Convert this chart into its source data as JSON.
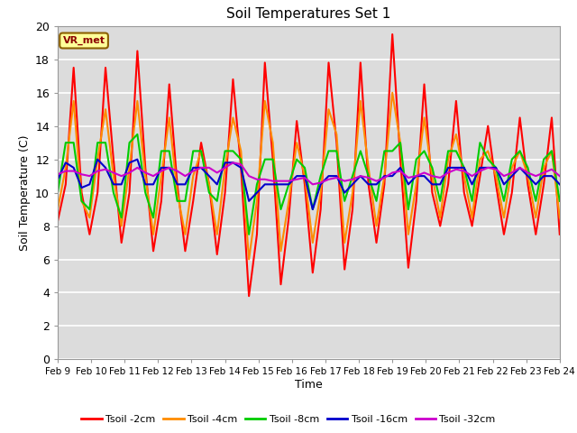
{
  "title": "Soil Temperatures Set 1",
  "xlabel": "Time",
  "ylabel": "Soil Temperature (C)",
  "annotation": "VR_met",
  "ylim": [
    0,
    20
  ],
  "plot_bg": "#dcdcdc",
  "figure_bg": "#ffffff",
  "series": {
    "Tsoil -2cm": {
      "color": "#ff0000",
      "lw": 1.5
    },
    "Tsoil -4cm": {
      "color": "#ff8c00",
      "lw": 1.5
    },
    "Tsoil -8cm": {
      "color": "#00cc00",
      "lw": 1.5
    },
    "Tsoil -16cm": {
      "color": "#0000cc",
      "lw": 1.5
    },
    "Tsoil -32cm": {
      "color": "#cc00cc",
      "lw": 1.5
    }
  },
  "xtick_labels": [
    "Feb 9",
    "Feb 10",
    "Feb 11",
    "Feb 12",
    "Feb 13",
    "Feb 14",
    "Feb 15",
    "Feb 16",
    "Feb 17",
    "Feb 18",
    "Feb 19",
    "Feb 20",
    "Feb 21",
    "Feb 22",
    "Feb 23",
    "Feb 24"
  ],
  "ytick_labels": [
    "0",
    "2",
    "4",
    "6",
    "8",
    "10",
    "12",
    "14",
    "16",
    "18",
    "20"
  ],
  "t2cm": [
    8.3,
    10.5,
    17.5,
    10.0,
    7.5,
    10.0,
    17.5,
    12.0,
    7.0,
    10.0,
    18.5,
    11.5,
    6.5,
    9.5,
    16.5,
    10.5,
    6.5,
    9.5,
    13.0,
    10.5,
    6.3,
    10.0,
    16.8,
    11.5,
    3.8,
    7.5,
    17.8,
    12.0,
    4.5,
    8.5,
    14.3,
    10.5,
    5.2,
    9.0,
    17.8,
    13.0,
    5.4,
    9.0,
    17.8,
    10.5,
    7.0,
    10.5,
    19.5,
    12.0,
    5.5,
    9.5,
    16.5,
    10.0,
    8.0,
    10.5,
    15.5,
    10.0,
    8.0,
    11.0,
    14.0,
    10.5,
    7.5,
    10.0,
    14.5,
    10.5,
    7.5,
    10.5,
    14.5,
    7.5
  ],
  "t4cm": [
    9.0,
    11.5,
    15.5,
    9.5,
    8.5,
    12.0,
    15.0,
    11.0,
    8.0,
    11.5,
    15.5,
    11.0,
    7.5,
    11.0,
    14.5,
    10.0,
    7.5,
    11.0,
    12.5,
    10.5,
    7.5,
    11.5,
    14.5,
    12.5,
    6.0,
    9.5,
    15.5,
    13.0,
    6.5,
    9.5,
    13.0,
    11.0,
    7.0,
    10.0,
    15.0,
    13.5,
    7.0,
    10.0,
    15.5,
    11.5,
    8.0,
    11.0,
    16.0,
    13.0,
    7.5,
    10.5,
    14.5,
    11.0,
    8.5,
    12.0,
    13.5,
    11.0,
    8.5,
    12.0,
    12.5,
    11.0,
    8.5,
    11.5,
    12.5,
    11.0,
    8.5,
    11.5,
    12.5,
    8.5
  ],
  "t8cm": [
    10.0,
    13.0,
    13.0,
    9.5,
    9.0,
    13.0,
    13.0,
    10.0,
    8.5,
    13.0,
    13.5,
    10.0,
    8.5,
    12.5,
    12.5,
    9.5,
    9.5,
    12.5,
    12.5,
    10.0,
    9.5,
    12.5,
    12.5,
    12.0,
    7.5,
    10.5,
    12.0,
    12.0,
    9.0,
    10.5,
    12.0,
    11.5,
    9.0,
    11.0,
    12.5,
    12.5,
    9.5,
    11.0,
    12.5,
    11.0,
    9.5,
    12.5,
    12.5,
    13.0,
    9.0,
    12.0,
    12.5,
    11.5,
    9.5,
    12.5,
    12.5,
    11.5,
    9.5,
    13.0,
    12.0,
    11.5,
    9.5,
    12.0,
    12.5,
    11.5,
    9.5,
    12.0,
    12.5,
    9.5
  ],
  "t16cm": [
    10.8,
    11.8,
    11.5,
    10.3,
    10.5,
    12.0,
    11.5,
    10.5,
    10.5,
    11.8,
    12.0,
    10.5,
    10.5,
    11.5,
    11.5,
    10.5,
    10.5,
    11.5,
    11.5,
    11.0,
    10.5,
    11.8,
    11.8,
    11.5,
    9.5,
    10.0,
    10.5,
    10.5,
    10.5,
    10.5,
    11.0,
    11.0,
    9.0,
    10.5,
    11.0,
    11.0,
    10.0,
    10.5,
    11.0,
    10.5,
    10.5,
    11.0,
    11.0,
    11.5,
    10.5,
    11.0,
    11.0,
    10.5,
    10.5,
    11.5,
    11.5,
    11.5,
    10.5,
    11.5,
    11.5,
    11.5,
    10.5,
    11.0,
    11.5,
    11.0,
    10.5,
    11.0,
    11.0,
    10.5
  ],
  "t32cm": [
    11.1,
    11.3,
    11.3,
    11.1,
    11.0,
    11.3,
    11.4,
    11.2,
    11.0,
    11.2,
    11.5,
    11.2,
    11.0,
    11.3,
    11.5,
    11.3,
    11.0,
    11.3,
    11.5,
    11.5,
    11.2,
    11.5,
    11.8,
    11.7,
    11.0,
    10.8,
    10.8,
    10.7,
    10.7,
    10.7,
    10.8,
    10.9,
    10.5,
    10.6,
    10.8,
    10.9,
    10.7,
    10.8,
    11.0,
    10.9,
    10.7,
    10.9,
    11.2,
    11.3,
    10.9,
    11.0,
    11.2,
    11.0,
    10.9,
    11.2,
    11.4,
    11.3,
    11.0,
    11.3,
    11.5,
    11.4,
    11.0,
    11.2,
    11.5,
    11.2,
    11.0,
    11.2,
    11.4,
    11.0
  ]
}
